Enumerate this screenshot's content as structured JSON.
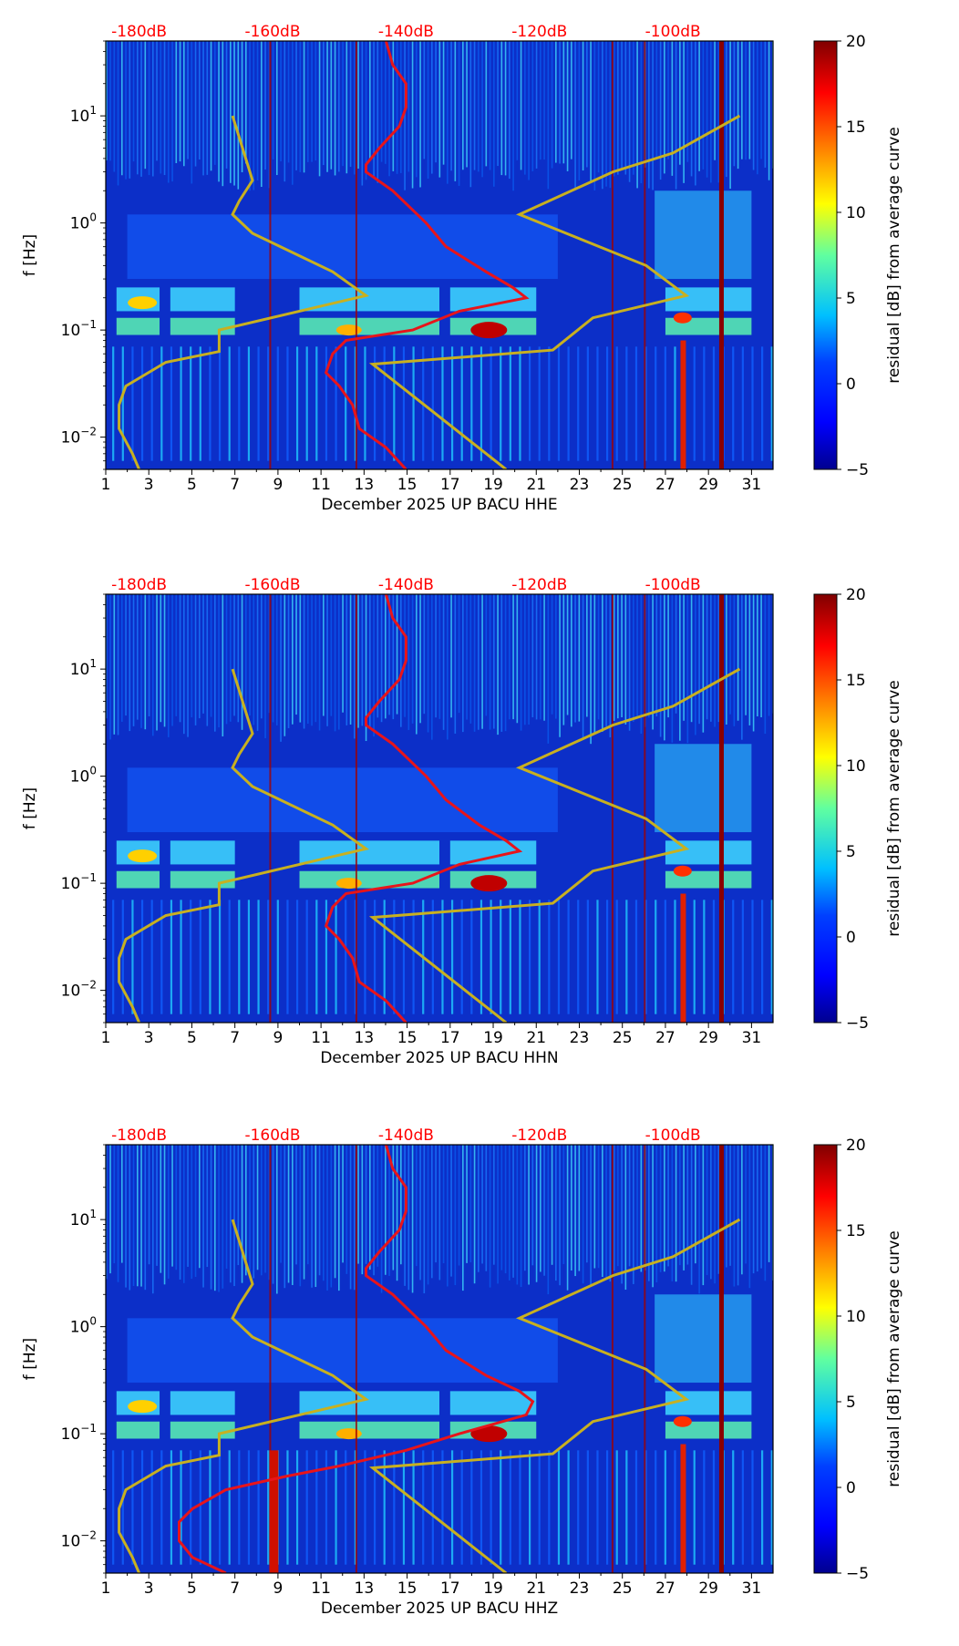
{
  "chart_data": [
    {
      "type": "heatmap",
      "channel": "HHE",
      "xlabel": "December 2025 UP BACU  HHE",
      "ylabel": "f [Hz]",
      "x_ticks": [
        "1",
        "3",
        "5",
        "7",
        "9",
        "11",
        "13",
        "15",
        "17",
        "19",
        "21",
        "23",
        "25",
        "27",
        "29",
        "31"
      ],
      "y_ticks": [
        {
          "value": 0.01,
          "base": "10",
          "exp": "−2"
        },
        {
          "value": 0.1,
          "base": "10",
          "exp": "−1"
        },
        {
          "value": 1,
          "base": "10",
          "exp": "0"
        },
        {
          "value": 10,
          "base": "10",
          "exp": "1"
        }
      ],
      "xlim": [
        1,
        32
      ],
      "ylim": [
        0.005,
        50
      ],
      "db_scale": {
        "ticks": [
          "-180dB",
          "-160dB",
          "-140dB",
          "-120dB",
          "-100dB"
        ],
        "values": [
          -180,
          -160,
          -140,
          -120,
          -100
        ],
        "range": [
          -185,
          -85
        ]
      },
      "colorbar": {
        "label": "residual [dB] from average curve",
        "ticks": [
          "−5",
          "0",
          "5",
          "10",
          "15",
          "20"
        ],
        "values": [
          -5,
          0,
          5,
          10,
          15,
          20
        ],
        "range": [
          -5,
          20
        ]
      },
      "average_curve_db": {
        "color": "#e8141a",
        "f": [
          0.005,
          0.008,
          0.012,
          0.02,
          0.03,
          0.04,
          0.06,
          0.08,
          0.1,
          0.15,
          0.2,
          0.25,
          0.35,
          0.6,
          1.0,
          2.0,
          3.0,
          3.5,
          5,
          8,
          12,
          20,
          30,
          50
        ],
        "db": [
          -140,
          -143,
          -147,
          -148,
          -150,
          -152,
          -151,
          -149,
          -139,
          -132,
          -122,
          -124,
          -128,
          -134,
          -137,
          -142,
          -146,
          -146,
          -144,
          -141,
          -140,
          -140,
          -142,
          -143
        ]
      },
      "nlnm_db": {
        "color": "#c8b020",
        "f": [
          0.005,
          0.007,
          0.012,
          0.02,
          0.03,
          0.05,
          0.063,
          0.1,
          0.21,
          0.35,
          0.8,
          1.2,
          1.6,
          2.5,
          10
        ],
        "db": [
          -180,
          -181,
          -183,
          -183,
          -182,
          -176,
          -168,
          -168,
          -146,
          -151,
          -163,
          -166,
          -165,
          -163,
          -166
        ]
      },
      "nhnm_db": {
        "color": "#c8b020",
        "f": [
          0.005,
          0.048,
          0.065,
          0.13,
          0.21,
          0.4,
          1.2,
          3.0,
          4.5,
          10
        ],
        "db": [
          -125,
          -145,
          -118,
          -112,
          -98,
          -104,
          -123,
          -109,
          -100,
          -90
        ]
      }
    },
    {
      "type": "heatmap",
      "channel": "HHN",
      "xlabel": "December 2025 UP BACU  HHN",
      "ylabel": "f [Hz]",
      "x_ticks": [
        "1",
        "3",
        "5",
        "7",
        "9",
        "11",
        "13",
        "15",
        "17",
        "19",
        "21",
        "23",
        "25",
        "27",
        "29",
        "31"
      ],
      "y_ticks": [
        {
          "value": 0.01,
          "base": "10",
          "exp": "−2"
        },
        {
          "value": 0.1,
          "base": "10",
          "exp": "−1"
        },
        {
          "value": 1,
          "base": "10",
          "exp": "0"
        },
        {
          "value": 10,
          "base": "10",
          "exp": "1"
        }
      ],
      "xlim": [
        1,
        32
      ],
      "ylim": [
        0.005,
        50
      ],
      "db_scale": {
        "ticks": [
          "-180dB",
          "-160dB",
          "-140dB",
          "-120dB",
          "-100dB"
        ],
        "values": [
          -180,
          -160,
          -140,
          -120,
          -100
        ],
        "range": [
          -185,
          -85
        ]
      },
      "colorbar": {
        "label": "residual [dB] from average curve",
        "ticks": [
          "−5",
          "0",
          "5",
          "10",
          "15",
          "20"
        ],
        "values": [
          -5,
          0,
          5,
          10,
          15,
          20
        ],
        "range": [
          -5,
          20
        ]
      },
      "average_curve_db": {
        "color": "#e8141a",
        "f": [
          0.005,
          0.008,
          0.012,
          0.02,
          0.03,
          0.04,
          0.06,
          0.08,
          0.1,
          0.15,
          0.2,
          0.25,
          0.35,
          0.6,
          1.0,
          2.0,
          3.0,
          3.5,
          5,
          8,
          12,
          20,
          30,
          50
        ],
        "db": [
          -140,
          -143,
          -147,
          -148,
          -150,
          -152,
          -151,
          -149,
          -139,
          -132,
          -123,
          -125,
          -129,
          -134,
          -137,
          -142,
          -146,
          -146,
          -144,
          -141,
          -140,
          -140,
          -142,
          -143
        ]
      },
      "nlnm_db": {
        "color": "#c8b020",
        "f": [
          0.005,
          0.007,
          0.012,
          0.02,
          0.03,
          0.05,
          0.063,
          0.1,
          0.21,
          0.35,
          0.8,
          1.2,
          1.6,
          2.5,
          10
        ],
        "db": [
          -180,
          -181,
          -183,
          -183,
          -182,
          -176,
          -168,
          -168,
          -146,
          -151,
          -163,
          -166,
          -165,
          -163,
          -166
        ]
      },
      "nhnm_db": {
        "color": "#c8b020",
        "f": [
          0.005,
          0.048,
          0.065,
          0.13,
          0.21,
          0.4,
          1.2,
          3.0,
          4.5,
          10
        ],
        "db": [
          -125,
          -145,
          -118,
          -112,
          -98,
          -104,
          -123,
          -109,
          -100,
          -90
        ]
      }
    },
    {
      "type": "heatmap",
      "channel": "HHZ",
      "xlabel": "December 2025 UP BACU  HHZ",
      "ylabel": "f [Hz]",
      "x_ticks": [
        "1",
        "3",
        "5",
        "7",
        "9",
        "11",
        "13",
        "15",
        "17",
        "19",
        "21",
        "23",
        "25",
        "27",
        "29",
        "31"
      ],
      "y_ticks": [
        {
          "value": 0.01,
          "base": "10",
          "exp": "−2"
        },
        {
          "value": 0.1,
          "base": "10",
          "exp": "−1"
        },
        {
          "value": 1,
          "base": "10",
          "exp": "0"
        },
        {
          "value": 10,
          "base": "10",
          "exp": "1"
        }
      ],
      "xlim": [
        1,
        32
      ],
      "ylim": [
        0.005,
        50
      ],
      "db_scale": {
        "ticks": [
          "-180dB",
          "-160dB",
          "-140dB",
          "-120dB",
          "-100dB"
        ],
        "values": [
          -180,
          -160,
          -140,
          -120,
          -100
        ],
        "range": [
          -185,
          -85
        ]
      },
      "colorbar": {
        "label": "residual [dB] from average curve",
        "ticks": [
          "−5",
          "0",
          "5",
          "10",
          "15",
          "20"
        ],
        "values": [
          -5,
          0,
          5,
          10,
          15,
          20
        ],
        "range": [
          -5,
          20
        ]
      },
      "average_curve_db": {
        "color": "#e8141a",
        "f": [
          0.005,
          0.007,
          0.01,
          0.015,
          0.02,
          0.03,
          0.04,
          0.05,
          0.07,
          0.1,
          0.15,
          0.2,
          0.25,
          0.35,
          0.6,
          1.0,
          2.0,
          3.0,
          3.5,
          5,
          8,
          12,
          20,
          30,
          50
        ],
        "db": [
          -167,
          -172,
          -174,
          -174,
          -172,
          -167,
          -158,
          -150,
          -140,
          -132,
          -122,
          -121,
          -123,
          -128,
          -134,
          -137,
          -142,
          -146,
          -146,
          -144,
          -141,
          -140,
          -140,
          -142,
          -143
        ]
      },
      "nlnm_db": {
        "color": "#c8b020",
        "f": [
          0.005,
          0.007,
          0.012,
          0.02,
          0.03,
          0.05,
          0.063,
          0.1,
          0.21,
          0.35,
          0.8,
          1.2,
          1.6,
          2.5,
          10
        ],
        "db": [
          -180,
          -181,
          -183,
          -183,
          -182,
          -176,
          -168,
          -168,
          -146,
          -151,
          -163,
          -166,
          -165,
          -163,
          -166
        ]
      },
      "nhnm_db": {
        "color": "#c8b020",
        "f": [
          0.005,
          0.048,
          0.065,
          0.13,
          0.21,
          0.4,
          1.2,
          3.0,
          4.5,
          10
        ],
        "db": [
          -125,
          -145,
          -118,
          -112,
          -98,
          -104,
          -123,
          -109,
          -100,
          -90
        ]
      }
    }
  ],
  "colors": {
    "jet": [
      "#00008f",
      "#0000ff",
      "#0080ff",
      "#00ffff",
      "#80ff80",
      "#ffff00",
      "#ff8000",
      "#ff0000",
      "#800000"
    ],
    "background": "#0c2fc8",
    "db_text": "#ff0000"
  }
}
